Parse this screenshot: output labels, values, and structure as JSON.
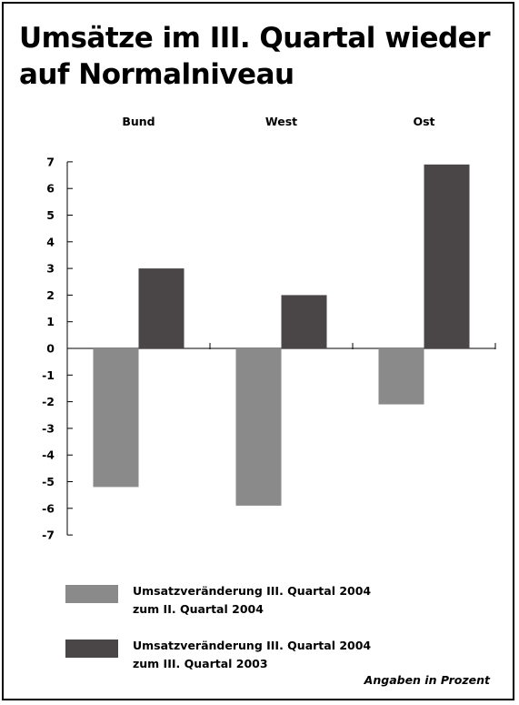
{
  "header": {
    "title_line1": "Umsätze im III. Quartal wieder",
    "title_line2": "auf Normalniveau"
  },
  "chart_data": {
    "type": "bar",
    "categories": [
      "Bund",
      "West",
      "Ost"
    ],
    "series": [
      {
        "name": "Umsatzveränderung III. Quartal 2004 zum II. Quartal 2004",
        "label_lines": [
          "Umsatzveränderung III. Quartal 2004",
          "zum II. Quartal 2004"
        ],
        "color": "#8a8a8a",
        "values": [
          -5.2,
          -5.9,
          -2.1
        ]
      },
      {
        "name": "Umsatzveränderung III. Quartal 2004 zum III. Quartal 2003",
        "label_lines": [
          "Umsatzveränderung III. Quartal 2004",
          "zum III. Quartal 2003"
        ],
        "color": "#4a4546",
        "values": [
          3.0,
          2.0,
          6.9
        ]
      }
    ],
    "ylim": [
      -7,
      7
    ],
    "yticks": [
      7,
      6,
      5,
      4,
      3,
      2,
      1,
      0,
      -1,
      -2,
      -3,
      -4,
      -5,
      -6,
      -7
    ],
    "grid": false,
    "legend_position": "bottom-left",
    "note": "Angaben in Prozent"
  }
}
